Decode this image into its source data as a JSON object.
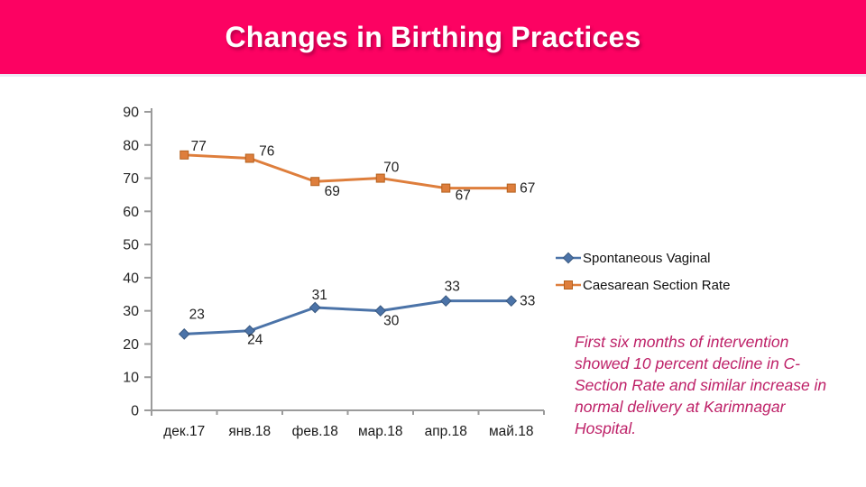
{
  "header": {
    "title": "Changes in Birthing Practices",
    "background": "#fc0262",
    "text_color": "#ffffff"
  },
  "chart_data": {
    "type": "line",
    "categories": [
      "дек.17",
      "янв.18",
      "фев.18",
      "мар.18",
      "апр.18",
      "май.18"
    ],
    "series": [
      {
        "name": "Spontaneous Vaginal",
        "color": "#4b73a8",
        "marker_border": "#39587f",
        "marker": "diamond",
        "values": [
          23,
          24,
          31,
          30,
          33,
          33
        ],
        "label_offsets": [
          [
            14,
            -22
          ],
          [
            6,
            10
          ],
          [
            5,
            -14
          ],
          [
            12,
            11
          ],
          [
            7,
            -16
          ],
          [
            18,
            0
          ]
        ]
      },
      {
        "name": "Caesarean Section Rate",
        "color": "#de7e3c",
        "marker_border": "#b4611f",
        "marker": "square",
        "values": [
          77,
          76,
          69,
          70,
          67,
          67
        ],
        "label_offsets": [
          [
            16,
            -10
          ],
          [
            19,
            -8
          ],
          [
            19,
            11
          ],
          [
            12,
            -12
          ],
          [
            19,
            8
          ],
          [
            18,
            0
          ]
        ]
      }
    ],
    "title": "",
    "xlabel": "",
    "ylabel": "",
    "ylim": [
      0,
      90
    ],
    "ytick_step": 10,
    "grid": false,
    "legend_position": "right",
    "axis_color": "#9b9b9b",
    "label_color": "#1f1f1f"
  },
  "annotation": {
    "text": "First six months of intervention showed 10 percent decline in C-Section Rate and similar increase in normal delivery at Karimnagar Hospital.",
    "color": "#be2168"
  }
}
